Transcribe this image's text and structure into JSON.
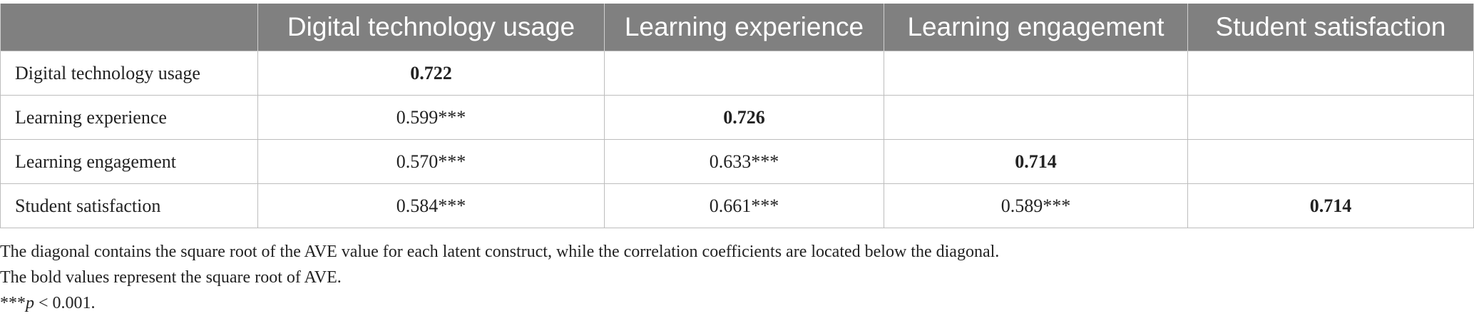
{
  "table": {
    "columns": [
      null,
      "Digital technology usage",
      "Learning experience",
      "Learning engagement",
      "Student satisfaction"
    ],
    "rows": [
      [
        "Digital technology usage",
        "0.722",
        null,
        null,
        null
      ],
      [
        "Learning experience",
        "0.599***",
        "0.726",
        null,
        null
      ],
      [
        "Learning engagement",
        "0.570***",
        "0.633***",
        "0.714",
        null
      ],
      [
        "Student satisfaction",
        "0.584***",
        "0.661***",
        "0.589***",
        "0.714"
      ]
    ]
  },
  "notes": [
    "The diagonal contains the square root of the AVE value for each latent construct, while the correlation coefficients are located below the diagonal.",
    "The bold values represent the square root of AVE.",
    {
      "prefix": "***",
      "italic": "p",
      "rest": " < 0.001."
    }
  ]
}
